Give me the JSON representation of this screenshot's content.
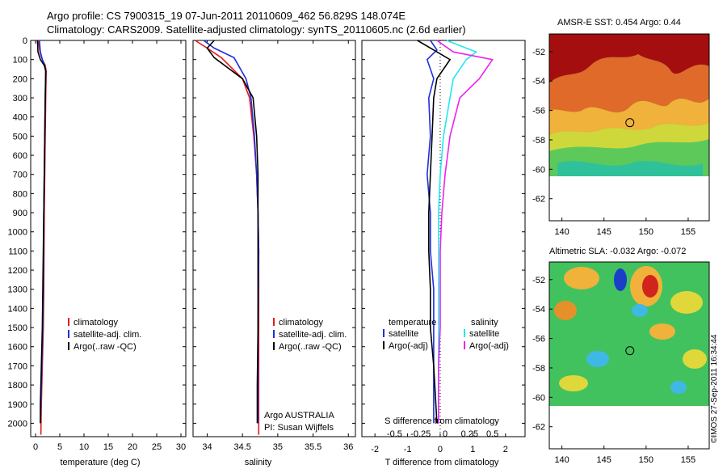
{
  "header": {
    "line1": "Argo profile: CS 7900315_19 07-Jun-2011 20110609_462 56.829S 148.074E",
    "line2": "Climatology: CARS2009. Satellite-adjusted climatology: synTS_20110605.nc (2.6d earlier)"
  },
  "credit": "©IMOS 27-Sep-2011 16:34:44",
  "colors": {
    "climatology": "#e8181c",
    "satellite": "#1f2fe0",
    "argo": "#000000",
    "satellite_s": "#22e8ee",
    "argo_s": "#ee22ee"
  },
  "chart_data": [
    {
      "type": "line",
      "name": "temperature profile",
      "xlabel": "temperature (deg C)",
      "ylabel": "",
      "xlim": [
        -1,
        31
      ],
      "ylim": [
        2070,
        0
      ],
      "y_reversed": true,
      "xticks": [
        0,
        5,
        10,
        15,
        20,
        25,
        30
      ],
      "yticks": [
        0,
        100,
        200,
        300,
        400,
        500,
        600,
        700,
        800,
        900,
        1000,
        1100,
        1200,
        1300,
        1400,
        1500,
        1600,
        1700,
        1800,
        1900,
        2000
      ],
      "legend": [
        "climatology",
        "satellite-adj. clim.",
        "Argo(..raw -QC)"
      ],
      "series": [
        {
          "name": "climatology",
          "color": "red",
          "x": [
            0.6,
            0.9,
            1.4,
            2.0,
            2.2,
            2.1,
            2.0,
            1.9,
            1.8,
            1.75,
            1.7,
            1.6,
            1.5,
            1.4,
            1.3,
            1.2,
            1.1
          ],
          "y": [
            0,
            60,
            100,
            130,
            160,
            300,
            500,
            700,
            900,
            1100,
            1300,
            1500,
            1600,
            1700,
            1800,
            1900,
            2060
          ]
        },
        {
          "name": "satellite-adj. clim.",
          "color": "blue",
          "x": [
            0.8,
            1.0,
            1.4,
            1.9,
            2.1,
            2.0,
            1.9,
            1.8,
            1.7,
            1.65,
            1.6,
            1.5,
            1.4,
            1.3,
            1.2,
            1.1,
            1.0
          ],
          "y": [
            0,
            60,
            100,
            130,
            160,
            300,
            500,
            700,
            900,
            1100,
            1300,
            1500,
            1600,
            1700,
            1800,
            1900,
            2000
          ]
        },
        {
          "name": "Argo(..raw -QC)",
          "color": "black",
          "x": [
            0.4,
            0.5,
            1.0,
            1.8,
            2.1,
            2.0,
            1.9,
            1.8,
            1.7,
            1.6,
            1.5,
            1.4,
            1.3,
            1.2,
            1.1,
            1.0,
            1.0
          ],
          "y": [
            0,
            60,
            100,
            130,
            160,
            300,
            500,
            700,
            900,
            1100,
            1300,
            1500,
            1600,
            1700,
            1800,
            1900,
            2000
          ]
        }
      ]
    },
    {
      "type": "line",
      "name": "salinity profile",
      "xlabel": "salinity",
      "xlim": [
        33.8,
        36.1
      ],
      "ylim": [
        2070,
        0
      ],
      "y_reversed": true,
      "xticks": [
        34,
        34.5,
        35,
        35.5,
        36
      ],
      "legend": [
        "climatology",
        "satellite-adj. clim.",
        "Argo(..raw -QC)"
      ],
      "annotation": [
        "Argo AUSTRALIA",
        "PI: Susan Wijffels"
      ],
      "series": [
        {
          "name": "climatology",
          "color": "red",
          "x": [
            33.83,
            34.0,
            34.2,
            34.5,
            34.6,
            34.66,
            34.7,
            34.72,
            34.73,
            34.73,
            34.73,
            34.73
          ],
          "y": [
            0,
            40,
            90,
            200,
            300,
            500,
            700,
            900,
            1100,
            1500,
            1800,
            2060
          ]
        },
        {
          "name": "satellite-adj. clim.",
          "color": "blue",
          "x": [
            33.95,
            34.1,
            34.38,
            34.55,
            34.62,
            34.67,
            34.7,
            34.72,
            34.73,
            34.72,
            34.72,
            34.72
          ],
          "y": [
            0,
            40,
            90,
            200,
            300,
            500,
            700,
            900,
            1100,
            1500,
            1800,
            2000
          ]
        },
        {
          "name": "Argo(..raw -QC)",
          "color": "black",
          "x": [
            34.1,
            34.0,
            34.1,
            34.5,
            34.65,
            34.7,
            34.72,
            34.72,
            34.72,
            34.72,
            34.71,
            34.71
          ],
          "y": [
            0,
            40,
            90,
            200,
            300,
            500,
            700,
            900,
            1100,
            1500,
            1800,
            2000
          ]
        }
      ]
    },
    {
      "type": "line",
      "name": "difference from climatology",
      "xlabel": "T difference from climatology",
      "xlabel_top": "S difference from climatology",
      "xlim": [
        -2.4,
        2.6
      ],
      "ylim": [
        2070,
        0
      ],
      "y_reversed": true,
      "xticks_T": [
        -2,
        -1,
        0,
        1,
        2
      ],
      "xticks_S": [
        "-0.5",
        "-0.25",
        "0",
        "0.25",
        "0.5"
      ],
      "legend_temperature": [
        "temperature",
        "satellite",
        "Argo(-adj)"
      ],
      "legend_salinity": [
        "salinity",
        "satellite",
        "Argo(-adj)"
      ],
      "series": [
        {
          "name": "temperature satellite",
          "color": "blue",
          "x": [
            -0.3,
            -0.1,
            -0.4,
            -0.2,
            -0.35,
            -0.3,
            -0.4,
            -0.3,
            -0.3,
            -0.2,
            -0.2,
            -0.2,
            -0.2
          ],
          "y": [
            0,
            50,
            100,
            200,
            300,
            500,
            700,
            900,
            1100,
            1300,
            1500,
            1700,
            2000
          ]
        },
        {
          "name": "temperature Argo(-adj)",
          "color": "black",
          "x": [
            -0.7,
            -0.2,
            0.3,
            -0.1,
            -0.2,
            -0.25,
            -0.3,
            -0.35,
            -0.35,
            -0.3,
            -0.3,
            -0.2,
            -0.1
          ],
          "y": [
            0,
            50,
            100,
            200,
            300,
            500,
            700,
            900,
            1100,
            1300,
            1500,
            1700,
            2000
          ]
        },
        {
          "name": "salinity satellite",
          "color": "cyan",
          "x": [
            0.2,
            1.1,
            0.8,
            0.4,
            0.3,
            0.1,
            0.0,
            -0.05,
            -0.05,
            -0.05,
            -0.05,
            -0.05
          ],
          "y": [
            0,
            60,
            100,
            200,
            300,
            500,
            700,
            900,
            1100,
            1500,
            1700,
            2000
          ]
        },
        {
          "name": "salinity Argo(-adj)",
          "color": "magenta",
          "x": [
            -0.1,
            0.4,
            1.6,
            1.2,
            0.6,
            0.3,
            0.15,
            0.05,
            0.0,
            0.0,
            -0.05,
            -0.05
          ],
          "y": [
            0,
            60,
            100,
            200,
            300,
            500,
            700,
            900,
            1100,
            1500,
            1700,
            2000
          ]
        }
      ]
    },
    {
      "type": "heatmap",
      "name": "sst map",
      "title": "AMSR-E SST: 0.454 Argo: 0.44",
      "xlim": [
        138.5,
        157.5
      ],
      "ylim": [
        -63.5,
        -50.8
      ],
      "xticks": [
        140,
        145,
        150,
        155
      ],
      "yticks": [
        -52,
        -54,
        -56,
        -58,
        -60,
        -62
      ],
      "marker": {
        "lon": 148.07,
        "lat": -56.83
      }
    },
    {
      "type": "heatmap",
      "name": "sla map",
      "title": "Altimetric SLA: -0.032 Argo: -0.072",
      "xlim": [
        138.5,
        157.5
      ],
      "ylim": [
        -63.5,
        -50.8
      ],
      "xticks": [
        140,
        145,
        150,
        155
      ],
      "yticks": [
        -52,
        -54,
        -56,
        -58,
        -60,
        -62
      ],
      "marker": {
        "lon": 148.07,
        "lat": -56.83
      }
    }
  ]
}
